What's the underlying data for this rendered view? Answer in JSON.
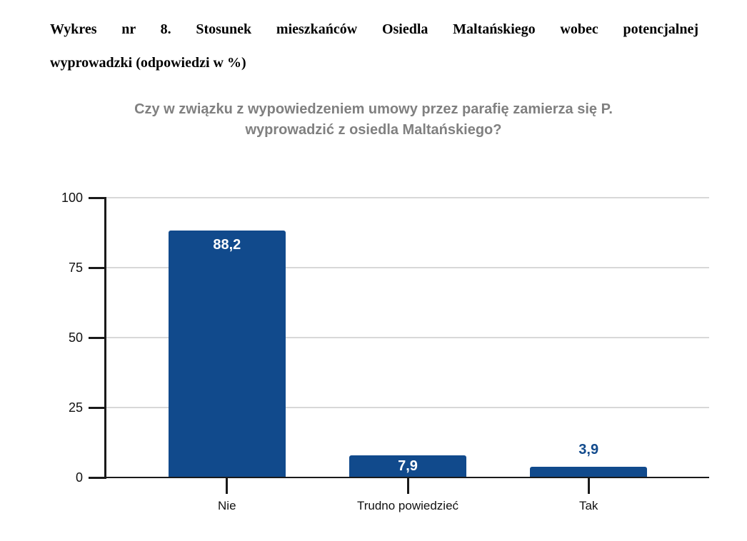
{
  "document": {
    "heading_line1": "Wykres nr 8. Stosunek mieszkańców Osiedla Maltańskiego wobec potencjalnej",
    "heading_line2": "wyprowadzki (odpowiedzi w %)"
  },
  "chart_data": {
    "type": "bar",
    "title": "Czy w związku z wypowiedzeniem umowy przez parafię zamierza się P. wyprowadzić z osiedla Maltańskiego?",
    "title_lines": [
      "Czy w związku z wypowiedzeniem umowy przez parafię zamierza się P.",
      "wyprowadzić z osiedla Maltańskiego?"
    ],
    "categories": [
      "Nie",
      "Trudno powiedzieć",
      "Tak"
    ],
    "values": [
      88.2,
      7.9,
      3.9
    ],
    "value_labels": [
      "88,2",
      "7,9",
      "3,9"
    ],
    "xlabel": "",
    "ylabel": "",
    "ylim": [
      0,
      100
    ],
    "yticks": [
      0,
      25,
      50,
      75,
      100
    ],
    "grid": true,
    "legend": false,
    "decimal_separator": ",",
    "colors": {
      "bar": "#114A8C",
      "value_label_inside": "#FFFFFF",
      "value_label_outside": "#114A8C",
      "title": "#808080",
      "gridline": "#D8D8D8",
      "axis": "#1A1A1A",
      "tick_label": "#111111"
    }
  }
}
